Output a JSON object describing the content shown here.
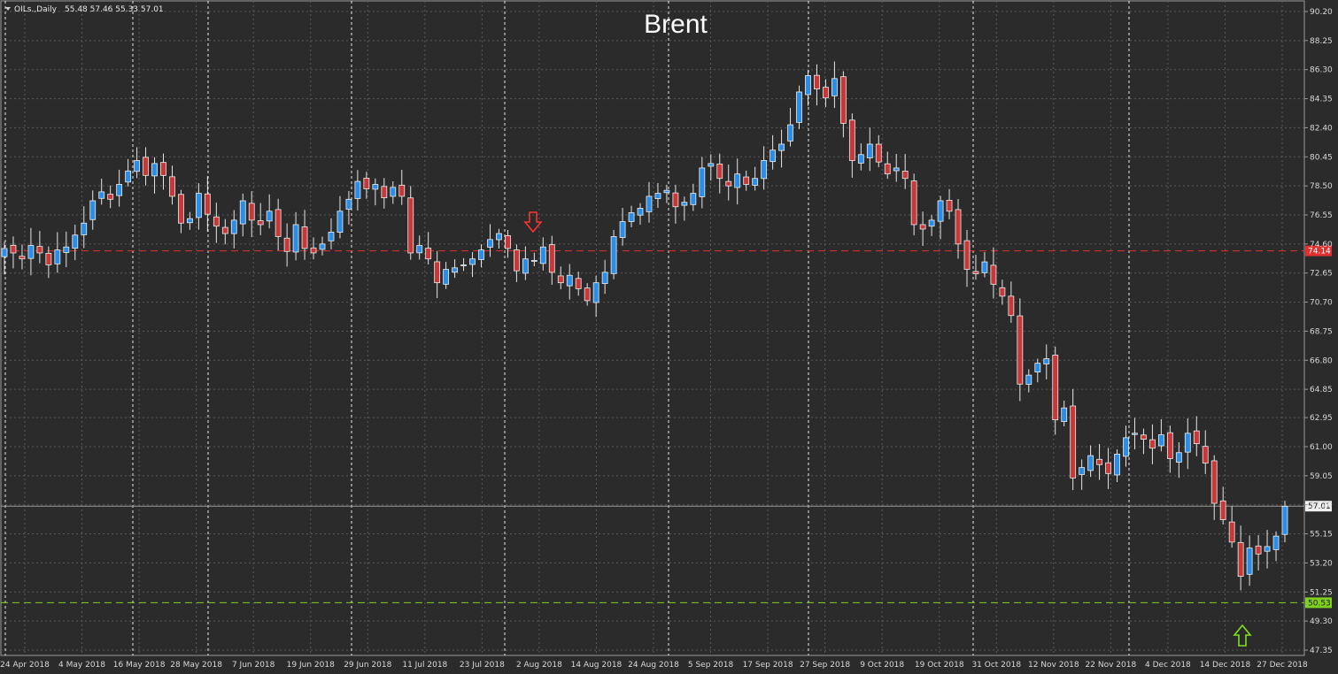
{
  "chart_data": {
    "type": "candlestick",
    "title": "Brent",
    "symbol_label": "OILs.,Daily",
    "ohlc_readout": "55.48 57.46 55.33 57.01",
    "grid": true,
    "ylim": [
      47.1,
      90.9
    ],
    "y_ticks": [
      "90.20",
      "88.25",
      "86.30",
      "84.35",
      "82.40",
      "80.45",
      "78.50",
      "76.55",
      "74.60",
      "72.65",
      "70.70",
      "68.75",
      "66.80",
      "64.85",
      "62.95",
      "61.00",
      "59.05",
      "57.10",
      "55.15",
      "53.20",
      "51.25",
      "49.30",
      "47.35"
    ],
    "x_labels": [
      "24 Apr 2018",
      "4 May 2018",
      "16 May 2018",
      "28 May 2018",
      "7 Jun 2018",
      "19 Jun 2018",
      "29 Jun 2018",
      "11 Jul 2018",
      "23 Jul 2018",
      "2 Aug 2018",
      "14 Aug 2018",
      "24 Aug 2018",
      "5 Sep 2018",
      "17 Sep 2018",
      "27 Sep 2018",
      "9 Oct 2018",
      "19 Oct 2018",
      "31 Oct 2018",
      "12 Nov 2018",
      "22 Nov 2018",
      "4 Dec 2018",
      "14 Dec 2018",
      "27 Dec 2018"
    ],
    "levels": [
      {
        "name": "resistance",
        "value": 74.14,
        "label": "74.14",
        "color": "#e03030"
      },
      {
        "name": "support",
        "value": 50.53,
        "label": "50.53",
        "color": "#80d020"
      }
    ],
    "current_price": {
      "value": 57.01,
      "label": "57.01"
    },
    "closes": [
      74.3,
      74.0,
      73.6,
      74.5,
      74.0,
      73.2,
      74.2,
      74.4,
      75.2,
      76.0,
      77.5,
      78.1,
      77.6,
      78.6,
      79.5,
      80.2,
      79.2,
      80.0,
      79.2,
      77.8,
      76.0,
      76.3,
      78.0,
      76.6,
      75.8,
      75.3,
      76.2,
      77.5,
      76.2,
      75.9,
      76.8,
      75.1,
      74.1,
      75.9,
      74.3,
      74.0,
      74.6,
      75.4,
      76.8,
      77.6,
      78.8,
      78.3,
      78.6,
      77.7,
      78.4,
      77.8,
      74.0,
      74.5,
      73.6,
      72.0,
      72.9,
      73.0,
      73.2,
      73.6,
      74.2,
      74.9,
      75.3,
      74.3,
      72.8,
      73.6,
      73.5,
      74.4,
      72.7,
      72.0,
      72.5,
      71.6,
      70.8,
      72.0,
      72.7,
      75.1,
      76.1,
      76.7,
      77.0,
      77.8,
      78.0,
      78.2,
      77.1,
      77.4,
      78.0,
      79.7,
      80.0,
      79.0,
      78.5,
      79.3,
      78.6,
      79.0,
      80.2,
      80.9,
      81.3,
      82.6,
      84.8,
      85.9,
      85.0,
      84.4,
      85.7,
      82.7,
      80.2,
      80.6,
      81.3,
      80.1,
      79.3,
      79.7,
      79.0,
      75.9,
      75.6,
      76.2,
      77.5,
      76.8,
      74.6,
      72.9,
      72.6,
      73.4,
      71.9,
      71.1,
      69.8,
      65.2,
      65.8,
      66.6,
      66.9,
      62.8,
      63.6,
      58.9,
      59.6,
      60.4,
      59.8,
      59.2,
      60.5,
      61.6,
      61.9,
      61.5,
      60.9,
      61.8,
      60.2,
      60.6,
      61.9,
      61.2,
      59.9,
      57.2,
      56.1,
      54.6,
      52.3,
      54.2,
      53.8,
      54.3,
      55.0,
      57.0
    ]
  }
}
